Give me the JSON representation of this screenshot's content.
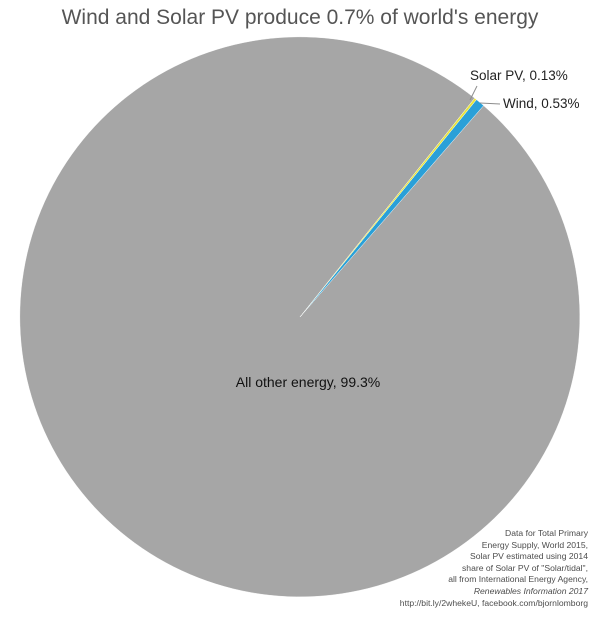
{
  "chart_data": {
    "type": "pie",
    "title": "Wind and Solar PV produce 0.7% of world's energy",
    "slices": [
      {
        "label": "Solar PV, 0.13%",
        "value": 0.13,
        "color": "#e8e43a"
      },
      {
        "label": "Wind, 0.53%",
        "value": 0.53,
        "color": "#2aa0d8"
      },
      {
        "label": "All other energy, 99.3%",
        "value": 99.3,
        "color": "#a6a6a6"
      }
    ]
  },
  "source": {
    "lines": [
      "Data for Total Primary",
      "Energy Supply, World 2015,",
      "Solar PV estimated using 2014",
      "share of Solar PV of \"Solar/tidal\",",
      "all from International Energy Agency,"
    ],
    "publication": "Renewables Information 2017",
    "links": "http://bit.ly/2whekeU, facebook.com/bjornlomborg"
  }
}
